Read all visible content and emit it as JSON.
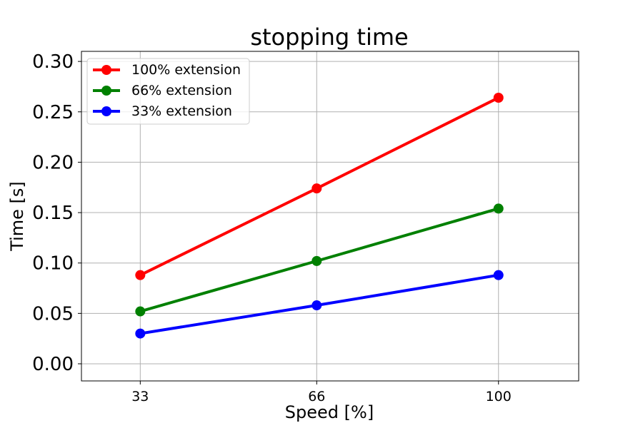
{
  "chart_data": {
    "type": "line",
    "title": "stopping time",
    "xlabel": "Speed [%]",
    "ylabel": "Time [s]",
    "categories": [
      "33",
      "66",
      "100"
    ],
    "x": [
      33,
      66,
      100
    ],
    "xlim": [
      22,
      115
    ],
    "ylim": [
      -0.017,
      0.31
    ],
    "yticks": [
      0.0,
      0.05,
      0.1,
      0.15,
      0.2,
      0.25,
      0.3
    ],
    "ytick_labels": [
      "0.00",
      "0.05",
      "0.10",
      "0.15",
      "0.20",
      "0.25",
      "0.30"
    ],
    "grid": true,
    "legend_position": "upper-left",
    "series": [
      {
        "name": "100% extension",
        "color": "#ff0000",
        "values": [
          0.088,
          0.174,
          0.264
        ]
      },
      {
        "name": "66% extension",
        "color": "#008000",
        "values": [
          0.052,
          0.102,
          0.154
        ]
      },
      {
        "name": "33% extension",
        "color": "#0000ff",
        "values": [
          0.03,
          0.058,
          0.088
        ]
      }
    ]
  }
}
